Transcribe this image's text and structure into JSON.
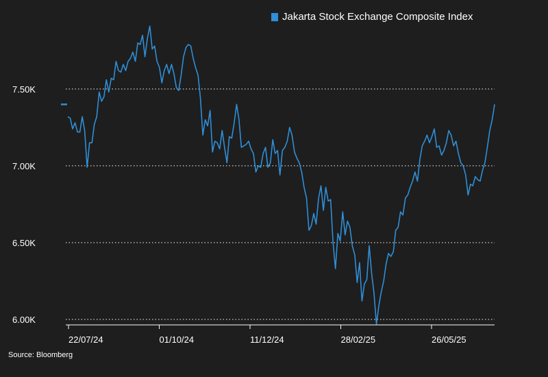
{
  "chart_data": {
    "type": "line",
    "title": "",
    "xlabel": "",
    "ylabel": "",
    "ylim": [
      6000,
      7950
    ],
    "y_ticks": [
      {
        "value": 6000,
        "label": "6.00K"
      },
      {
        "value": 6500,
        "label": "6.50K"
      },
      {
        "value": 7000,
        "label": "7.00K"
      },
      {
        "value": 7500,
        "label": "7.50K"
      }
    ],
    "x_ticks": [
      "22/07/24",
      "01/10/24",
      "11/12/24",
      "28/02/25",
      "26/05/25"
    ],
    "grid": "horizontal-dotted",
    "legend_position": "top",
    "last_value_marker": 7400,
    "series": [
      {
        "name": "Jakarta Stock Exchange Composite Index",
        "color": "#2f8fd8",
        "values": [
          7320,
          7310,
          7240,
          7280,
          7220,
          7220,
          7320,
          7230,
          6990,
          7150,
          7150,
          7270,
          7320,
          7480,
          7420,
          7450,
          7560,
          7480,
          7570,
          7560,
          7680,
          7620,
          7610,
          7660,
          7620,
          7680,
          7700,
          7740,
          7680,
          7800,
          7790,
          7850,
          7710,
          7830,
          7910,
          7760,
          7780,
          7680,
          7640,
          7540,
          7620,
          7660,
          7600,
          7660,
          7600,
          7510,
          7490,
          7590,
          7710,
          7770,
          7790,
          7780,
          7700,
          7640,
          7590,
          7440,
          7200,
          7300,
          7260,
          7360,
          7090,
          7160,
          7150,
          7110,
          7230,
          7120,
          7020,
          7190,
          7180,
          7280,
          7400,
          7300,
          7120,
          7130,
          7140,
          7160,
          7110,
          7080,
          6960,
          7000,
          6990,
          7080,
          7120,
          6990,
          7020,
          7170,
          7080,
          7100,
          6940,
          7100,
          7120,
          7160,
          7250,
          7200,
          7090,
          7050,
          7020,
          6960,
          6860,
          6790,
          6580,
          6610,
          6690,
          6620,
          6790,
          6870,
          6710,
          6860,
          6770,
          6780,
          6500,
          6330,
          6560,
          6510,
          6700,
          6550,
          6640,
          6600,
          6480,
          6420,
          6240,
          6370,
          6120,
          6230,
          6260,
          6480,
          6300,
          6170,
          5970,
          6090,
          6180,
          6250,
          6360,
          6430,
          6410,
          6440,
          6580,
          6600,
          6700,
          6680,
          6790,
          6810,
          6860,
          6900,
          6960,
          6900,
          7040,
          7130,
          7160,
          7200,
          7150,
          7190,
          7240,
          7120,
          7130,
          7070,
          7100,
          7150,
          7230,
          7200,
          7130,
          7160,
          7080,
          7020,
          7000,
          6940,
          6810,
          6880,
          6870,
          6930,
          6910,
          6900,
          6970,
          7020,
          7120,
          7230,
          7300,
          7400
        ]
      }
    ]
  },
  "source": "Source: Bloomberg"
}
